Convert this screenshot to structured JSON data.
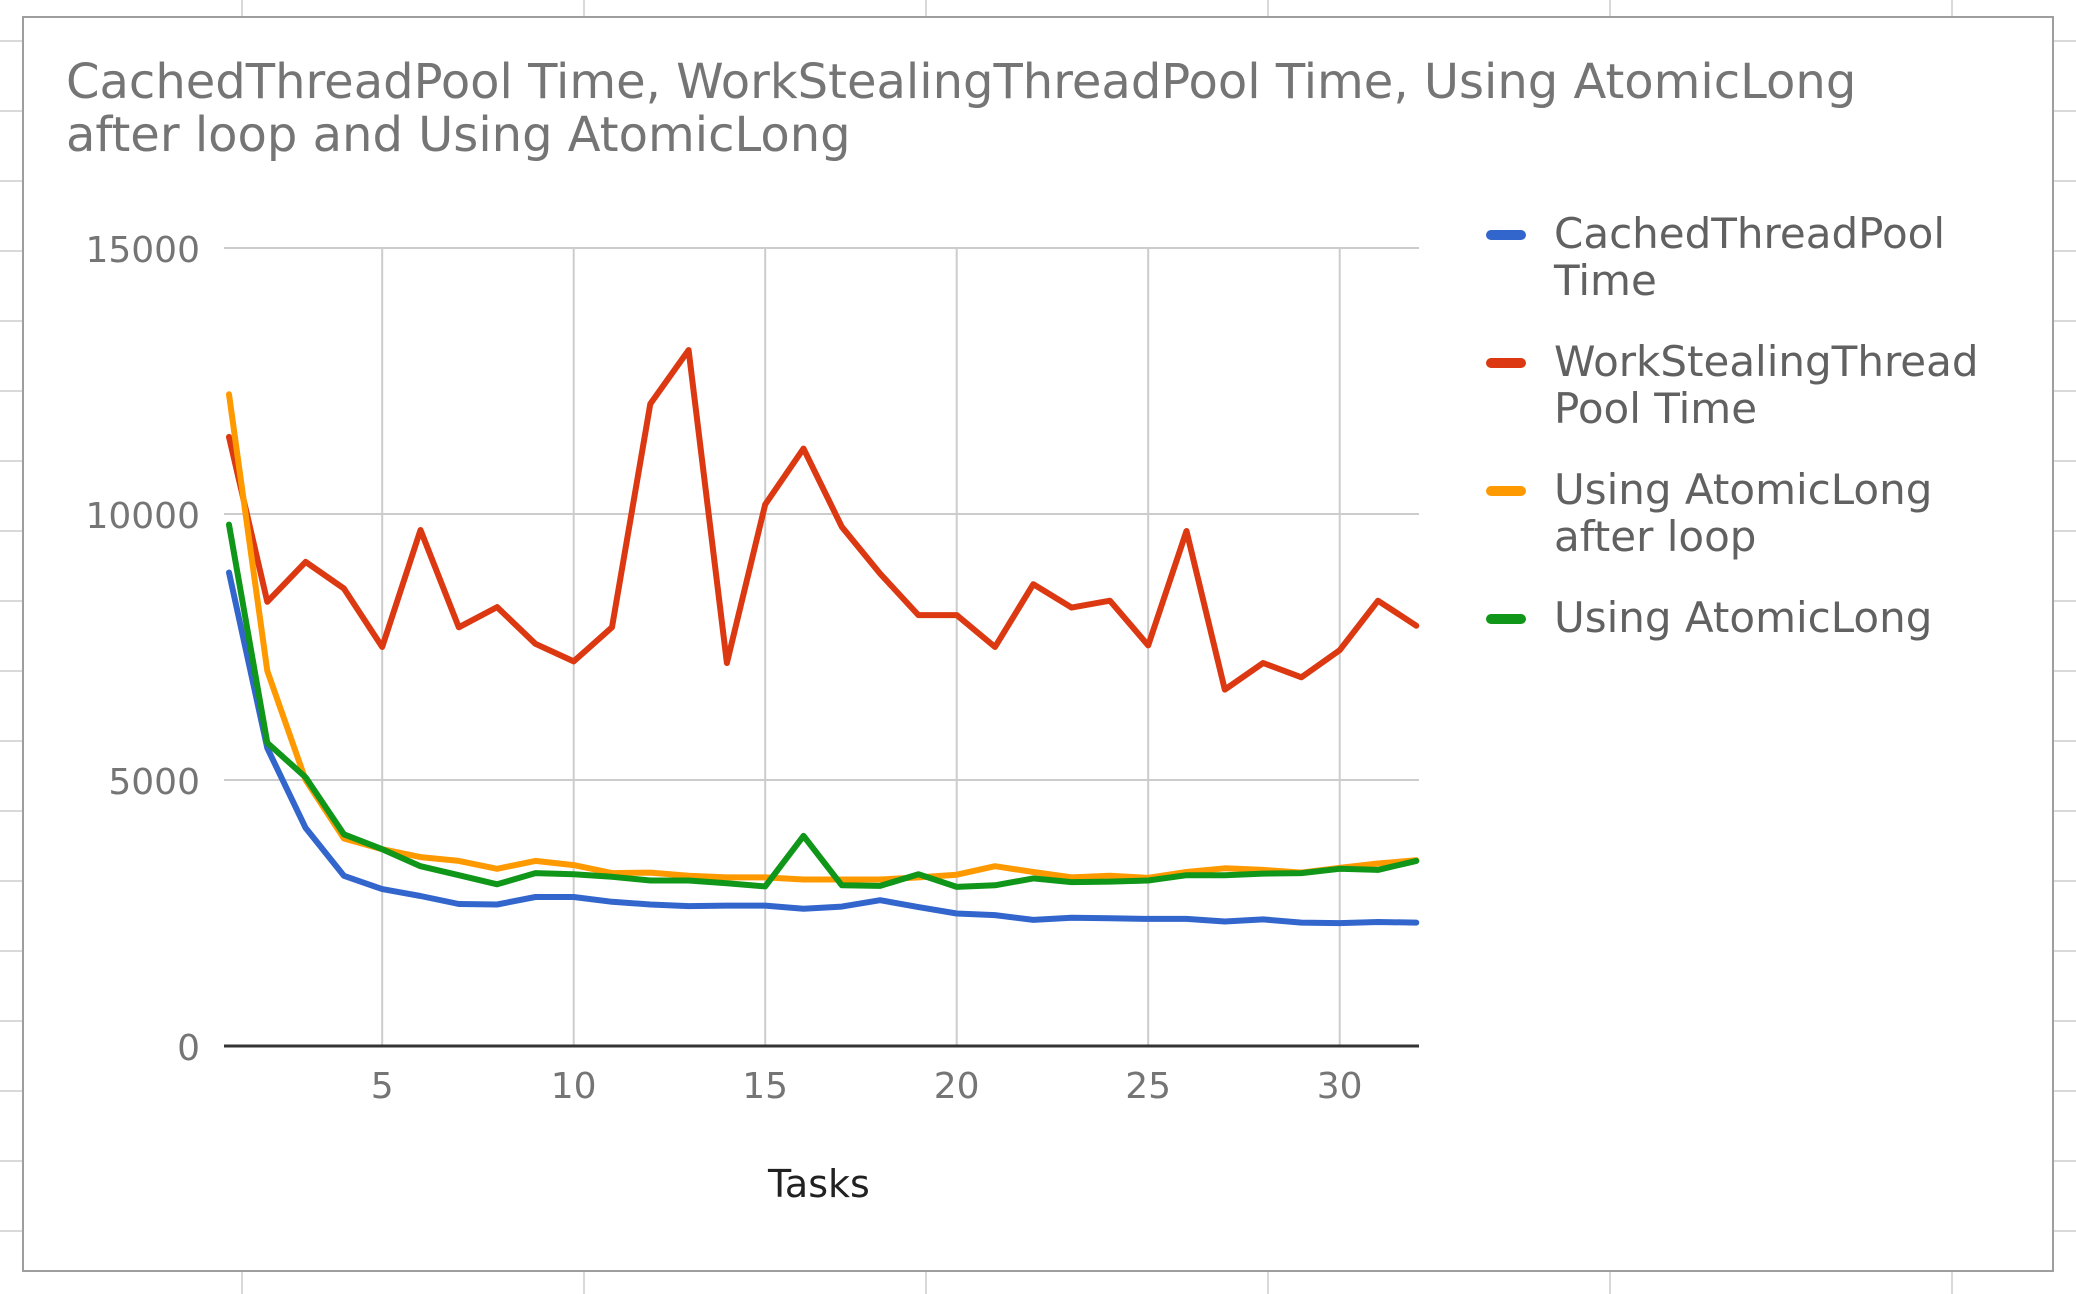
{
  "chart_data": {
    "type": "line",
    "title": "CachedThreadPool Time, WorkStealingThreadPool Time, Using AtomicLong after loop and Using AtomicLong",
    "xlabel": "Tasks",
    "ylabel": "",
    "xlim": [
      1,
      32
    ],
    "ylim": [
      0,
      15000
    ],
    "x_ticks": [
      5,
      10,
      15,
      20,
      25,
      30
    ],
    "y_ticks": [
      0,
      5000,
      10000,
      15000
    ],
    "grid": true,
    "legend_position": "right",
    "x": [
      1,
      2,
      3,
      4,
      5,
      6,
      7,
      8,
      9,
      10,
      11,
      12,
      13,
      14,
      15,
      16,
      17,
      18,
      19,
      20,
      21,
      22,
      23,
      24,
      25,
      26,
      27,
      28,
      29,
      30,
      31,
      32
    ],
    "series": [
      {
        "name": "CachedThreadPool\nTime",
        "color": "#3366cc",
        "values": [
          8900,
          5600,
          4100,
          3200,
          2950,
          2820,
          2670,
          2660,
          2800,
          2800,
          2710,
          2660,
          2630,
          2640,
          2640,
          2580,
          2620,
          2740,
          2610,
          2490,
          2460,
          2370,
          2410,
          2400,
          2390,
          2390,
          2340,
          2380,
          2320,
          2310,
          2330,
          2320
        ]
      },
      {
        "name": "WorkStealingThread\nPool Time",
        "color": "#dc3912",
        "values": [
          11450,
          8350,
          9100,
          8600,
          7500,
          9700,
          7870,
          8250,
          7560,
          7230,
          7870,
          12070,
          13080,
          7200,
          10180,
          11230,
          9760,
          8880,
          8100,
          8100,
          7500,
          8680,
          8240,
          8370,
          7530,
          9680,
          6700,
          7200,
          6930,
          7440,
          8370,
          7900
        ]
      },
      {
        "name": "Using AtomicLong\nafter loop",
        "color": "#ff9900",
        "values": [
          12250,
          7050,
          5000,
          3900,
          3700,
          3550,
          3480,
          3330,
          3480,
          3400,
          3250,
          3260,
          3200,
          3170,
          3170,
          3130,
          3130,
          3130,
          3170,
          3220,
          3380,
          3270,
          3170,
          3200,
          3160,
          3270,
          3340,
          3310,
          3260,
          3350,
          3430,
          3490
        ]
      },
      {
        "name": "Using AtomicLong",
        "color": "#109618",
        "values": [
          9800,
          5700,
          5050,
          3980,
          3700,
          3380,
          3210,
          3040,
          3250,
          3230,
          3180,
          3110,
          3110,
          3060,
          3000,
          3950,
          3020,
          3010,
          3230,
          2990,
          3020,
          3150,
          3080,
          3090,
          3110,
          3210,
          3210,
          3240,
          3250,
          3330,
          3310,
          3480
        ]
      }
    ]
  }
}
